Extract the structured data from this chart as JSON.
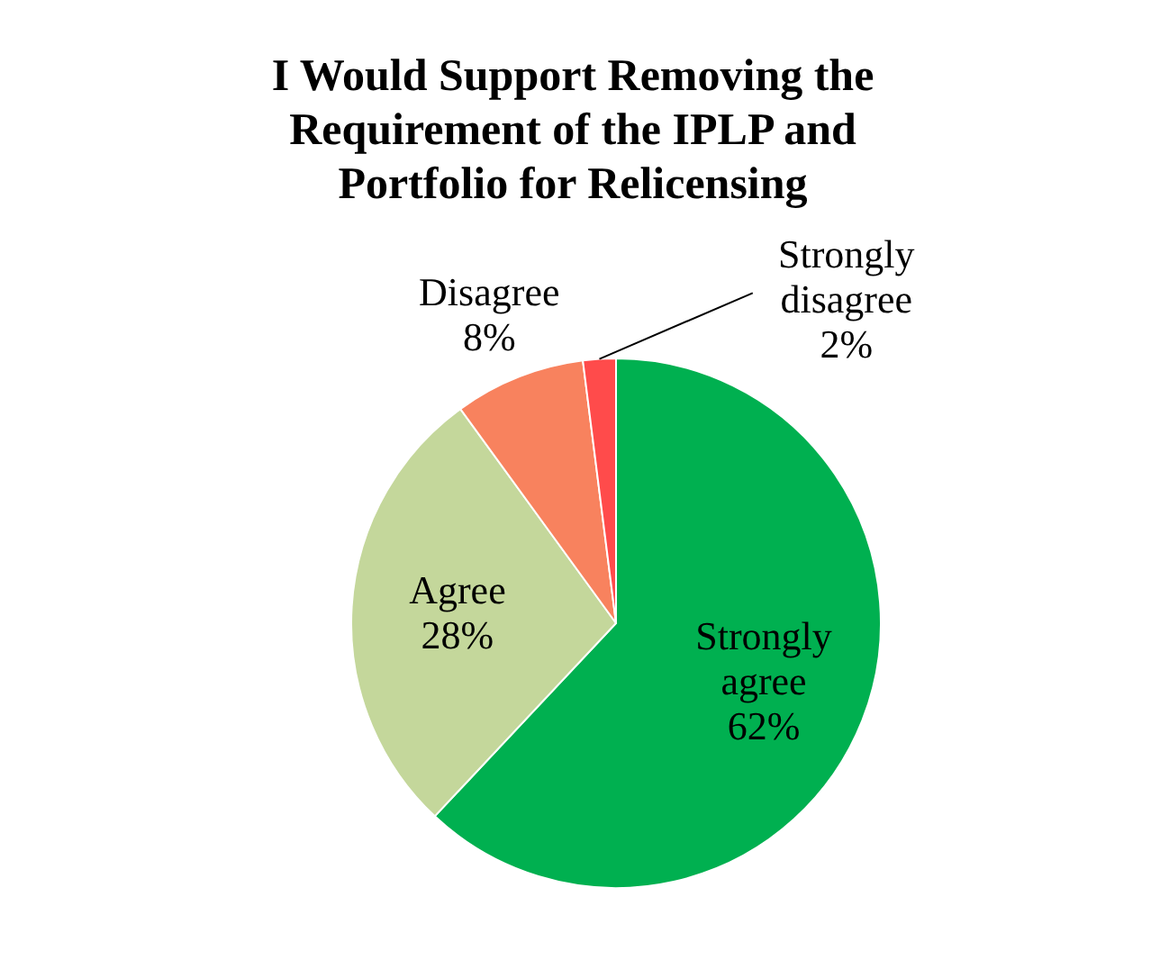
{
  "chart_data": {
    "type": "pie",
    "title": "I Would Support Removing the Requirement of the IPLP and Portfolio for Relicensing",
    "categories": [
      "Strongly agree",
      "Agree",
      "Disagree",
      "Strongly disagree"
    ],
    "values": [
      62,
      28,
      8,
      2
    ],
    "colors": [
      "#00b050",
      "#c4d79b",
      "#f8825e",
      "#ff4b4b"
    ],
    "value_labels": [
      "62%",
      "28%",
      "8%",
      "2%"
    ]
  }
}
